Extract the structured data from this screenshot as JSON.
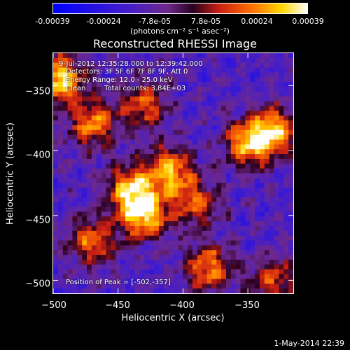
{
  "colorbar": {
    "ticks": [
      "-0.00039",
      "-0.00024",
      "-7.8e-05",
      "7.8e-05",
      "0.00024",
      "0.00039"
    ],
    "unit_label": "(photons cm⁻² s⁻¹ asec⁻²)",
    "range": [
      -0.00039,
      0.00039
    ]
  },
  "info": {
    "time": "9-Jul-2012 12:35:28.000 to 12:39:42.000",
    "detectors": "Detectors: 3F 5F 6F 7F 8F 9F, Att 0",
    "energy": "Energy Range: 12.0 - 25.0 keV",
    "method": "Clean",
    "counts": "Total counts: 3.84E+03",
    "peak": "Position of Peak = [-502,-357]"
  },
  "timestamp": "1-May-2014 22:39",
  "colors": {
    "background": "#000000",
    "foreground": "#ffffff"
  },
  "chart_data": {
    "type": "heatmap",
    "title": "Reconstructed RHESSI Image",
    "xlabel": "Heliocentric X (arcsec)",
    "ylabel": "Heliocentric Y (arcsec)",
    "xlim": [
      -500,
      -315
    ],
    "ylim": [
      -510,
      -325
    ],
    "x_ticks": [
      "−500",
      "−450",
      "−400",
      "−350"
    ],
    "y_ticks": [
      "−350",
      "−400",
      "−450",
      "−500"
    ],
    "x_tick_values": [
      -500,
      -450,
      -400,
      -350
    ],
    "y_tick_values": [
      -350,
      -400,
      -450,
      -500
    ],
    "colormap": "blue-purple-red-yellow-white",
    "peak_position": [
      -502,
      -357
    ],
    "hot_regions": [
      {
        "x": -495,
        "y": -345,
        "level": 1.0
      },
      {
        "x": -470,
        "y": -380,
        "level": 0.75
      },
      {
        "x": -430,
        "y": -365,
        "level": 0.65
      },
      {
        "x": -410,
        "y": -415,
        "level": 0.8
      },
      {
        "x": -440,
        "y": -430,
        "level": 0.85
      },
      {
        "x": -430,
        "y": -450,
        "level": 0.9
      },
      {
        "x": -350,
        "y": -395,
        "level": 0.8
      },
      {
        "x": -330,
        "y": -385,
        "level": 0.85
      },
      {
        "x": -380,
        "y": -490,
        "level": 0.75
      },
      {
        "x": -470,
        "y": -470,
        "level": 0.7
      },
      {
        "x": -330,
        "y": -500,
        "level": 0.6
      },
      {
        "x": -390,
        "y": -440,
        "level": 0.6
      }
    ]
  }
}
